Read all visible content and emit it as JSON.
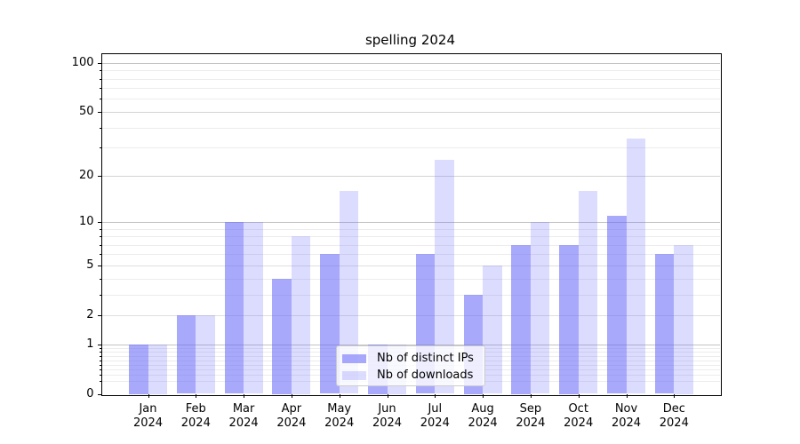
{
  "title": "spelling 2024",
  "chart_data": {
    "type": "bar",
    "title": "spelling 2024",
    "categories": [
      "Jan 2024",
      "Feb 2024",
      "Mar 2024",
      "Apr 2024",
      "May 2024",
      "Jun 2024",
      "Jul 2024",
      "Aug 2024",
      "Sep 2024",
      "Oct 2024",
      "Nov 2024",
      "Dec 2024"
    ],
    "series": [
      {
        "name": "Nb of distinct IPs",
        "values": [
          1,
          2,
          10,
          4,
          6,
          1,
          6,
          3,
          7,
          7,
          11,
          6
        ],
        "color": "rgba(102,102,250,0.56)"
      },
      {
        "name": "Nb of downloads",
        "values": [
          1,
          2,
          10,
          8,
          16,
          1,
          25,
          5,
          10,
          16,
          34,
          7
        ],
        "color": "rgba(102,102,250,0.23)"
      }
    ],
    "yscale": "log1p",
    "ylim": [
      0,
      115
    ],
    "yticks": [
      0,
      1,
      2,
      5,
      10,
      20,
      50,
      100
    ],
    "ytick_labels": [
      "0",
      "1",
      "2",
      "5",
      "10",
      "20",
      "50",
      "100"
    ],
    "major_grid_values": [
      1,
      10,
      100
    ],
    "mid_grid_values": [
      20,
      50
    ],
    "labeled_grid_values": [
      2,
      5
    ],
    "minor_grid_values": [
      0.2,
      0.3,
      0.4,
      0.5,
      0.6,
      0.7,
      0.8,
      0.9,
      3,
      4,
      6,
      7,
      8,
      9,
      30,
      40,
      60,
      70,
      80,
      90
    ],
    "grid": true,
    "legend_position": "lower center",
    "legend_entries": [
      "Nb of distinct IPs",
      "Nb of downloads"
    ]
  },
  "colors": {
    "bar_base": "#6666fa",
    "ips_bar": "rgba(102,102,250,0.56)",
    "downloads_bar": "rgba(102,102,250,0.23)",
    "grid_major": "#c3c3c3",
    "grid_minor": "#ececec",
    "axis": "#000000",
    "legend_border": "#cccccc"
  }
}
